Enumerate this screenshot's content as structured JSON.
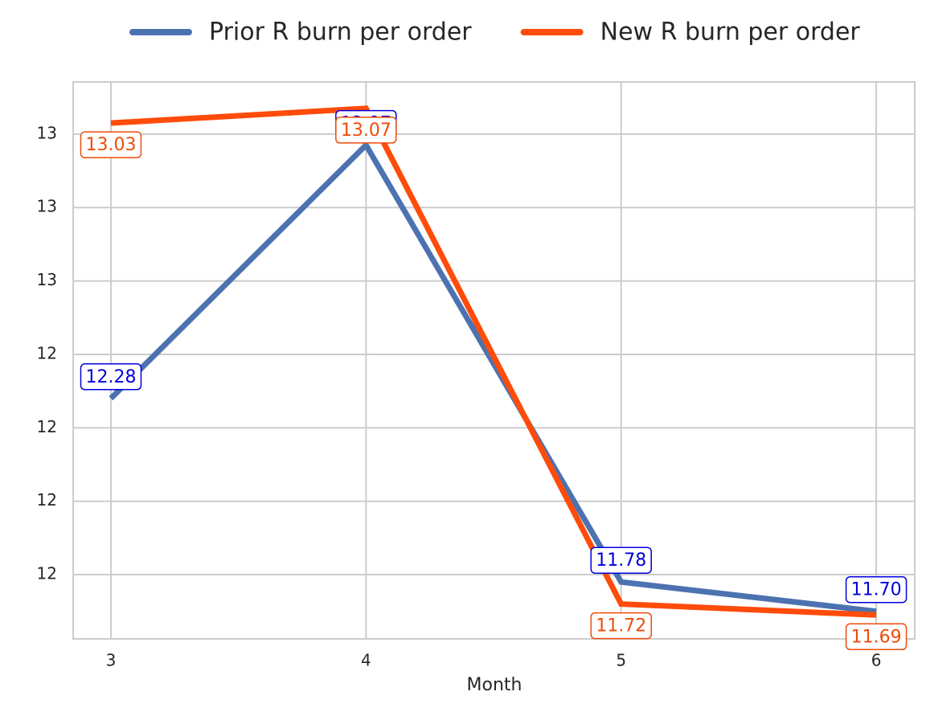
{
  "chart_data": {
    "type": "line",
    "x_label": "Month",
    "x": [
      3,
      4,
      5,
      6
    ],
    "xlim": [
      2.852,
      6.151
    ],
    "xticks": [
      3,
      4,
      5,
      6
    ],
    "ylim": [
      11.625,
      13.142
    ],
    "yticks": [
      {
        "value": 11.8,
        "label": "12"
      },
      {
        "value": 12.0,
        "label": "12"
      },
      {
        "value": 12.2,
        "label": "12"
      },
      {
        "value": 12.4,
        "label": "12"
      },
      {
        "value": 12.6,
        "label": "13"
      },
      {
        "value": 12.8,
        "label": "13"
      },
      {
        "value": 13.0,
        "label": "13"
      }
    ],
    "grid": true,
    "legend": "top",
    "series": [
      {
        "name": "Prior R burn per order",
        "color": "#4c72b0",
        "label_color": "#0000dd",
        "label_side": "above",
        "values": [
          12.28,
          12.97,
          11.78,
          11.7
        ],
        "value_labels": [
          "12.28",
          "12.97",
          "11.78",
          "11.70"
        ]
      },
      {
        "name": "New R burn per order",
        "color": "#ff4c0a",
        "label_color": "#ee4c0a",
        "label_side": "below",
        "values": [
          13.03,
          13.07,
          11.72,
          11.69
        ],
        "value_labels": [
          "13.03",
          "13.07",
          "11.72",
          "11.69"
        ]
      }
    ]
  }
}
